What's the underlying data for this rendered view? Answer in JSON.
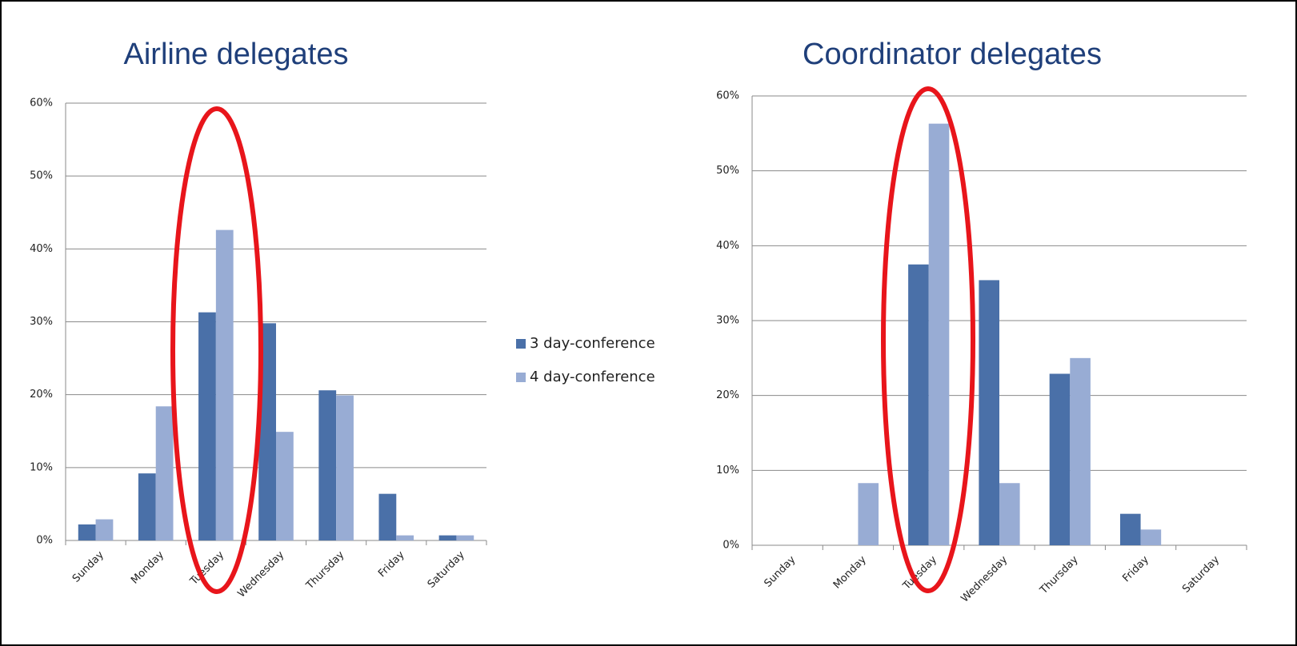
{
  "chart_data": [
    {
      "type": "bar",
      "title": "Airline delegates",
      "categories": [
        "Sunday",
        "Monday",
        "Tuesday",
        "Wednesday",
        "Thursday",
        "Friday",
        "Saturday"
      ],
      "series": [
        {
          "name": "3 day-conference",
          "color": "#4a70a8",
          "values": [
            2.2,
            9.2,
            31.3,
            29.8,
            20.6,
            6.4,
            0.7
          ]
        },
        {
          "name": "4 day-conference",
          "color": "#98acd4",
          "values": [
            2.9,
            18.4,
            42.6,
            14.9,
            19.9,
            0.7,
            0.7
          ]
        }
      ],
      "ylim": [
        0,
        60
      ],
      "yticks": [
        {
          "value": 0,
          "label": "0%"
        },
        {
          "value": 10,
          "label": "10%"
        },
        {
          "value": 20,
          "label": "20%"
        },
        {
          "value": 30,
          "label": "30%"
        },
        {
          "value": 40,
          "label": "40%"
        },
        {
          "value": 50,
          "label": "50%"
        },
        {
          "value": 60,
          "label": "60%"
        }
      ],
      "grid": true,
      "legend": "right"
    },
    {
      "type": "bar",
      "title": "Coordinator delegates",
      "categories": [
        "Sunday",
        "Monday",
        "Tuesday",
        "Wednesday",
        "Thursday",
        "Friday",
        "Saturday"
      ],
      "series": [
        {
          "color": "#4a70a8",
          "values": [
            0,
            0,
            37.5,
            35.4,
            22.9,
            4.2,
            0
          ]
        },
        {
          "color": "#98acd4",
          "values": [
            0,
            8.3,
            56.3,
            8.3,
            25.0,
            2.1,
            0
          ]
        }
      ],
      "ylim": [
        0,
        60
      ],
      "yticks": [
        {
          "value": 0,
          "label": "0%"
        },
        {
          "value": 10,
          "label": "10%"
        },
        {
          "value": 20,
          "label": "20%"
        },
        {
          "value": 30,
          "label": "30%"
        },
        {
          "value": 40,
          "label": "40%"
        },
        {
          "value": 50,
          "label": "50%"
        },
        {
          "value": 60,
          "label": "60%"
        }
      ],
      "grid": true
    }
  ]
}
